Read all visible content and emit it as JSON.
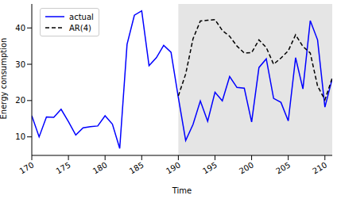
{
  "chart_data": {
    "type": "line",
    "xlabel": "Time",
    "ylabel": "Energy consumption",
    "x": [
      170,
      171,
      172,
      173,
      174,
      175,
      176,
      177,
      178,
      179,
      180,
      181,
      182,
      183,
      184,
      185,
      186,
      187,
      188,
      189,
      190,
      191,
      192,
      193,
      194,
      195,
      196,
      197,
      198,
      199,
      200,
      201,
      202,
      203,
      204,
      205,
      206,
      207,
      208,
      209,
      210,
      211
    ],
    "series": [
      {
        "name": "actual",
        "color": "#0000ff",
        "line_style": "solid",
        "values": [
          15.8,
          10,
          15.5,
          15.4,
          17.6,
          14.2,
          10.5,
          12.5,
          12.8,
          13,
          15.8,
          13.5,
          6.8,
          35.5,
          43.5,
          44.7,
          29.6,
          31.8,
          35.2,
          33.3,
          20.8,
          9,
          13.4,
          19.9,
          14.3,
          22.3,
          19.9,
          26.6,
          23.6,
          23.4,
          14.1,
          29.1,
          31.5,
          20.6,
          19.5,
          14.4,
          31.8,
          23.2,
          42,
          36.7,
          18.2,
          26
        ]
      },
      {
        "name": "AR(4)",
        "color": "#000000",
        "line_style": "dashed",
        "values": [
          null,
          null,
          null,
          null,
          null,
          null,
          null,
          null,
          null,
          null,
          null,
          null,
          null,
          null,
          null,
          null,
          null,
          null,
          null,
          null,
          21.3,
          27.3,
          37,
          41.9,
          42.1,
          42.3,
          39.3,
          37.7,
          35,
          33.1,
          33.2,
          36.7,
          34.6,
          30,
          31.7,
          33.7,
          38.1,
          34.9,
          33.1,
          24,
          20.2,
          26.2
        ]
      }
    ],
    "shaded_region": [
      190,
      211
    ],
    "xlim": [
      170,
      211
    ],
    "xticks": [
      170,
      175,
      180,
      185,
      190,
      195,
      200,
      205,
      210
    ],
    "ylim": [
      4.9,
      46.6
    ],
    "yticks": [
      10,
      20,
      30,
      40
    ],
    "legend": "upper left",
    "grid": false
  }
}
